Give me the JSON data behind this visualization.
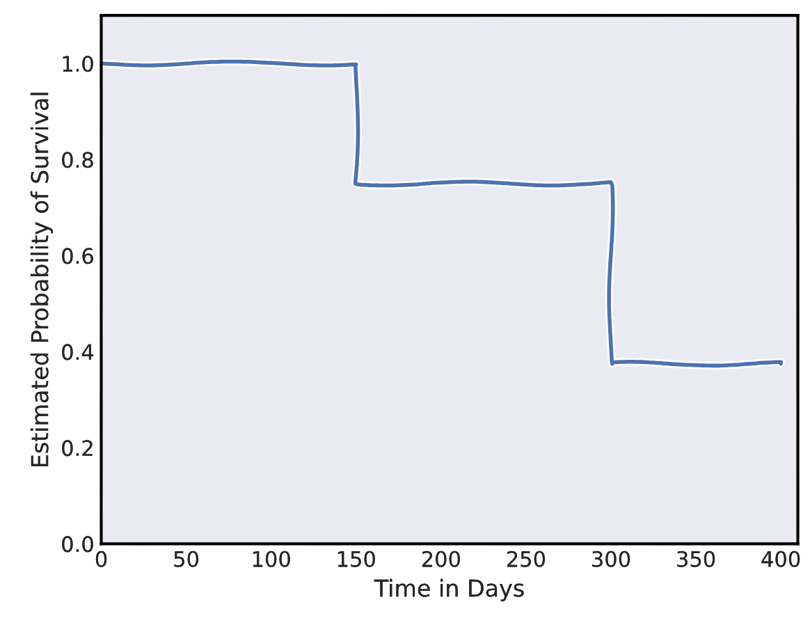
{
  "chart_data": {
    "type": "step",
    "xlabel": "Time in Days",
    "ylabel": "Estimated Probability of Survival",
    "x": [
      0,
      150,
      300,
      400
    ],
    "series": [
      {
        "color": "#4c72b0",
        "values": [
          1.0,
          0.75,
          0.375,
          0.375
        ]
      }
    ],
    "xlim": [
      0,
      410
    ],
    "ylim": [
      0,
      1.1
    ],
    "xticks": [
      0,
      50,
      100,
      150,
      200,
      250,
      300,
      350,
      400
    ],
    "yticks": [
      {
        "value": 0,
        "label": "0.0"
      },
      {
        "value": 0.2,
        "label": "0.2"
      },
      {
        "value": 0.4,
        "label": "0.4"
      },
      {
        "value": 0.6,
        "label": "0.6"
      },
      {
        "value": 0.8,
        "label": "0.8"
      },
      {
        "value": 1.0,
        "label": "1.0"
      }
    ],
    "grid": false,
    "legend": false
  }
}
